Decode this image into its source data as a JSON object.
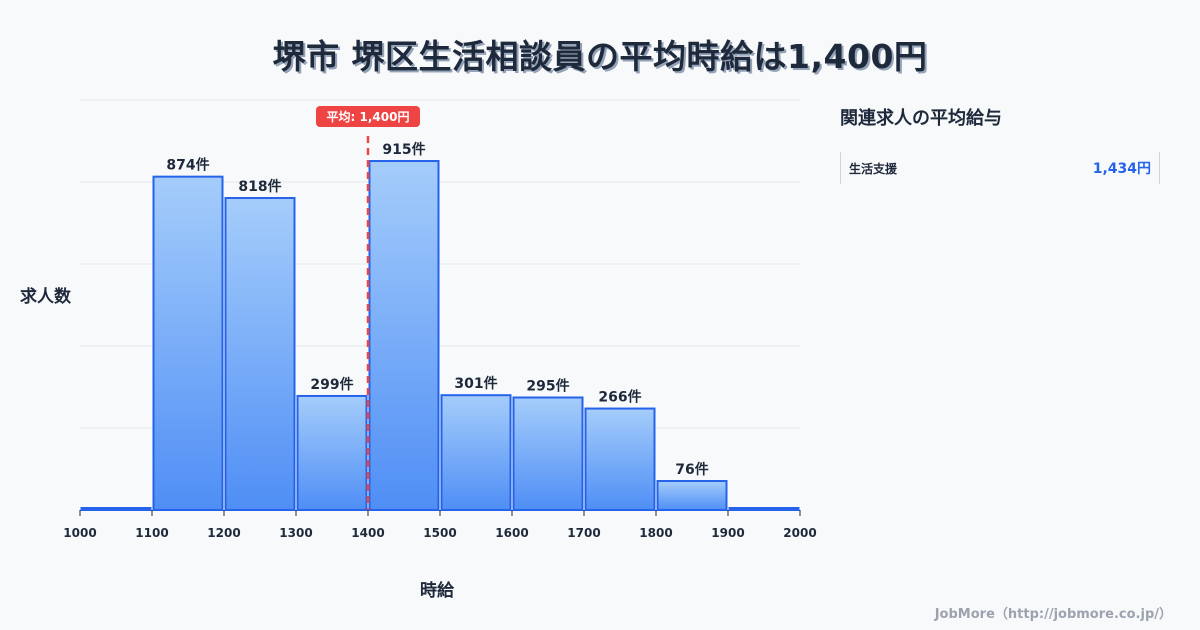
{
  "title": "堺市 堺区生活相談員の平均時給は1,400円",
  "chart_data": {
    "type": "bar",
    "title": "堺市 堺区生活相談員の平均時給は1,400円",
    "xlabel": "時給",
    "ylabel": "求人数",
    "categories": [
      "1000-1100",
      "1100-1200",
      "1200-1300",
      "1300-1400",
      "1400-1500",
      "1500-1600",
      "1600-1700",
      "1700-1800",
      "1800-1900",
      "1900-2000"
    ],
    "bin_edges": [
      1000,
      1100,
      1200,
      1300,
      1400,
      1500,
      1600,
      1700,
      1800,
      1900,
      2000
    ],
    "values": [
      0,
      874,
      818,
      299,
      915,
      301,
      295,
      266,
      76,
      0
    ],
    "value_labels": [
      "",
      "874件",
      "818件",
      "299件",
      "915件",
      "301件",
      "295件",
      "266件",
      "76件",
      ""
    ],
    "x_ticks": [
      "1000",
      "1100",
      "1200",
      "1300",
      "1400",
      "1500",
      "1600",
      "1700",
      "1800",
      "1900",
      "2000"
    ],
    "ylim": [
      0,
      1000
    ],
    "grid": true,
    "annotation": {
      "label": "平均: 1,400円",
      "x": 1400
    },
    "colors": {
      "bar_top": "#a5cdfb",
      "bar_bottom": "#4f8ef5",
      "bar_border": "#2563eb",
      "mean_line": "#ef4444"
    }
  },
  "labels": {
    "ylabel": "求人数",
    "xlabel": "時給",
    "mean_badge": "平均: 1,400円"
  },
  "sidebar": {
    "title": "関連求人の平均給与",
    "items": [
      {
        "name": "生活支援",
        "value": "1,434円"
      }
    ]
  },
  "footer": "JobMore（http://jobmore.co.jp/）"
}
